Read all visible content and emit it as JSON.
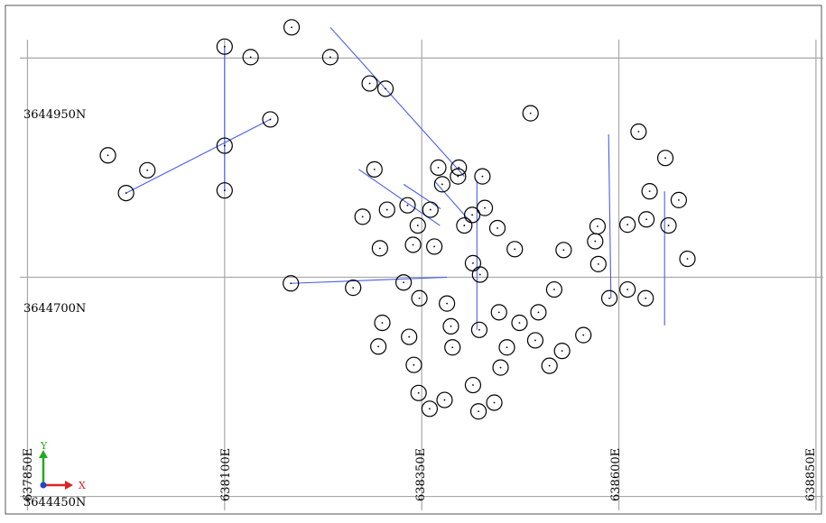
{
  "viewer": {
    "northing_labels": [
      "3644950N",
      "3644700N",
      "3644450N"
    ],
    "easting_labels": [
      "637850E",
      "638100E",
      "638350E",
      "638600E",
      "638850E"
    ],
    "axis_triad": {
      "y_label": "Y",
      "x_label": "X"
    },
    "colors": {
      "grid": "#a8a8a8",
      "border": "#555555",
      "collar": "#000000",
      "trace": "#4a5ee8",
      "triad_x": "#dd2222",
      "triad_y": "#22aa22",
      "triad_origin": "#2244cc"
    }
  },
  "chart_data": {
    "type": "scatter",
    "title": "",
    "xlabel": "",
    "ylabel": "",
    "xlim": [
      637822,
      638857
    ],
    "ylim": [
      3644430,
      3645010
    ],
    "x_ticks": [
      637850,
      638100,
      638350,
      638600,
      638850
    ],
    "y_ticks": [
      3644450,
      3644700,
      3644950
    ],
    "grid": true,
    "collars": [
      [
        638185,
        3644985
      ],
      [
        638100,
        3644963
      ],
      [
        638133,
        3644951
      ],
      [
        638234,
        3644951
      ],
      [
        638284,
        3644921
      ],
      [
        638304,
        3644915
      ],
      [
        638158,
        3644880
      ],
      [
        638100,
        3644850
      ],
      [
        638488,
        3644887
      ],
      [
        638625,
        3644866
      ],
      [
        638659,
        3644836
      ],
      [
        637952,
        3644839
      ],
      [
        638002,
        3644822
      ],
      [
        637975,
        3644796
      ],
      [
        638100,
        3644799
      ],
      [
        638290,
        3644823
      ],
      [
        638371,
        3644825
      ],
      [
        638397,
        3644825
      ],
      [
        638376,
        3644806
      ],
      [
        638396,
        3644815
      ],
      [
        638427,
        3644815
      ],
      [
        638430,
        3644779
      ],
      [
        638414,
        3644771
      ],
      [
        638332,
        3644782
      ],
      [
        638306,
        3644777
      ],
      [
        638275,
        3644769
      ],
      [
        638345,
        3644759
      ],
      [
        638404,
        3644759
      ],
      [
        638361,
        3644777
      ],
      [
        638446,
        3644756
      ],
      [
        638639,
        3644798
      ],
      [
        638676,
        3644788
      ],
      [
        638663,
        3644759
      ],
      [
        638635,
        3644766
      ],
      [
        638573,
        3644758
      ],
      [
        638611,
        3644760
      ],
      [
        638570,
        3644741
      ],
      [
        638687,
        3644721
      ],
      [
        638574,
        3644715
      ],
      [
        638530,
        3644731
      ],
      [
        638468,
        3644732
      ],
      [
        638339,
        3644737
      ],
      [
        638297,
        3644733
      ],
      [
        638366,
        3644735
      ],
      [
        638424,
        3644703
      ],
      [
        638415,
        3644716
      ],
      [
        638588,
        3644676
      ],
      [
        638611,
        3644686
      ],
      [
        638634,
        3644676
      ],
      [
        638518,
        3644686
      ],
      [
        638327,
        3644694
      ],
      [
        638263,
        3644688
      ],
      [
        638184,
        3644693
      ],
      [
        638347,
        3644676
      ],
      [
        638382,
        3644670
      ],
      [
        638498,
        3644660
      ],
      [
        638448,
        3644660
      ],
      [
        638423,
        3644640
      ],
      [
        638474,
        3644648
      ],
      [
        638300,
        3644648
      ],
      [
        638334,
        3644632
      ],
      [
        638387,
        3644644
      ],
      [
        638494,
        3644628
      ],
      [
        638555,
        3644634
      ],
      [
        638295,
        3644621
      ],
      [
        638389,
        3644620
      ],
      [
        638458,
        3644620
      ],
      [
        638528,
        3644616
      ],
      [
        638450,
        3644597
      ],
      [
        638512,
        3644599
      ],
      [
        638340,
        3644600
      ],
      [
        638415,
        3644577
      ],
      [
        638346,
        3644568
      ],
      [
        638379,
        3644560
      ],
      [
        638422,
        3644547
      ],
      [
        638442,
        3644557
      ],
      [
        638360,
        3644550
      ]
    ],
    "traces": [
      [
        [
          638100,
          3644963
        ],
        [
          638100,
          3644799
        ]
      ],
      [
        [
          637975,
          3644796
        ],
        [
          638158,
          3644880
        ]
      ],
      [
        [
          638234,
          3644985
        ],
        [
          638404,
          3644815
        ]
      ],
      [
        [
          638270,
          3644823
        ],
        [
          638373,
          3644759
        ]
      ],
      [
        [
          638327,
          3644806
        ],
        [
          638374,
          3644778
        ]
      ],
      [
        [
          638366,
          3644810
        ],
        [
          638412,
          3644763
        ]
      ],
      [
        [
          638420,
          3644810
        ],
        [
          638420,
          3644640
        ]
      ],
      [
        [
          638184,
          3644693
        ],
        [
          638382,
          3644700
        ]
      ],
      [
        [
          638587,
          3644863
        ],
        [
          638590,
          3644676
        ]
      ],
      [
        [
          638658,
          3644798
        ],
        [
          638658,
          3644645
        ]
      ]
    ]
  }
}
